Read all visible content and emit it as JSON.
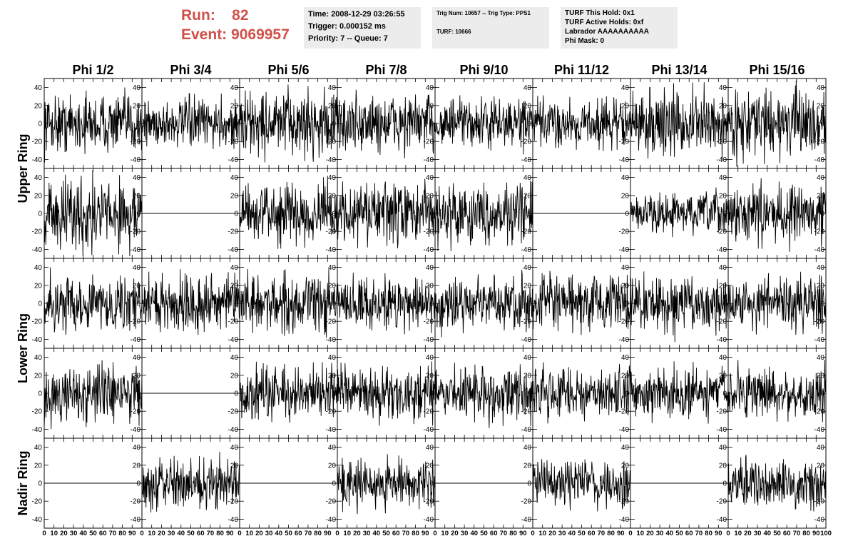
{
  "header": {
    "run_label": "Run:",
    "run_value": "82",
    "event_label": "Event:",
    "event_value": "9069957",
    "time": "Time: 2008-12-29 03:26:55",
    "trigger": "Trigger: 0.000152 ms",
    "priority": "Priority: 7 -- Queue: 7",
    "trig_num": "Trig Num: 10657 -- Trig Type: PPS1",
    "turf": "TURF: 10666",
    "turf_hold": "TURF This Hold: 0x1",
    "turf_active": "TURF Active Holds: 0xf",
    "labrador": "Labrador AAAAAAAAAA",
    "phi_mask": "Phi Mask: 0"
  },
  "chart_data": {
    "type": "line",
    "columns": [
      "Phi 1/2",
      "Phi 3/4",
      "Phi 5/6",
      "Phi 7/8",
      "Phi 9/10",
      "Phi 11/12",
      "Phi 13/14",
      "Phi 15/16"
    ],
    "row_groups": [
      {
        "label": "Upper Ring",
        "rows": [
          0,
          1
        ]
      },
      {
        "label": "Lower Ring",
        "rows": [
          2,
          3
        ]
      },
      {
        "label": "Nadir Ring",
        "rows": [
          4
        ]
      }
    ],
    "xlim": [
      0,
      100
    ],
    "x_ticks": [
      0,
      10,
      20,
      30,
      40,
      50,
      60,
      70,
      80,
      90,
      100
    ],
    "x_tick_labels": [
      "0",
      "10",
      "20",
      "30",
      "40",
      "50",
      "60",
      "70",
      "80",
      "90",
      "100"
    ],
    "x_tick_labels_last": [
      "0",
      "10",
      "20",
      "30",
      "40",
      "50",
      "60",
      "70",
      "80",
      "90",
      "100"
    ],
    "ylim": [
      -50,
      50
    ],
    "y_ticks": [
      -40,
      -20,
      0,
      20,
      40
    ],
    "y_tick_labels": [
      "-40",
      "-20",
      "0",
      "20",
      "40"
    ],
    "waveform_amplitude": [
      [
        14,
        12,
        16,
        15,
        12,
        12,
        16,
        16
      ],
      [
        18,
        0,
        14,
        15,
        14,
        0,
        10,
        14
      ],
      [
        13,
        14,
        14,
        13,
        14,
        13,
        14,
        13
      ],
      [
        14,
        0,
        13,
        13,
        13,
        13,
        12,
        13
      ],
      [
        0,
        12,
        0,
        12,
        0,
        12,
        0,
        12
      ]
    ]
  }
}
